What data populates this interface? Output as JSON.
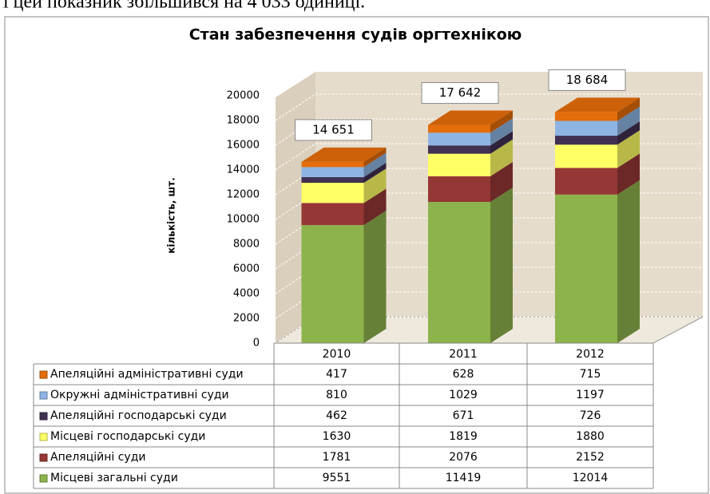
{
  "caption": "і цей показник збільшився на 4 033 одиниці.",
  "chart_data": {
    "type": "bar3d-stacked",
    "title": "Стан забезпечення судів оргтехнікою",
    "y_label": "кількість, шт.",
    "categories": [
      "2010",
      "2011",
      "2012"
    ],
    "ylim": [
      0,
      20000
    ],
    "yticks": [
      0,
      2000,
      4000,
      6000,
      8000,
      10000,
      12000,
      14000,
      16000,
      18000,
      20000
    ],
    "grid": true,
    "series": [
      {
        "name": "Місцеві загальні суди",
        "color": "#8db34c",
        "values": [
          9551,
          11419,
          12014
        ]
      },
      {
        "name": "Апеляційні суди",
        "color": "#953735",
        "values": [
          1781,
          2076,
          2152
        ]
      },
      {
        "name": "Місцеві господарські суди",
        "color": "#ffff66",
        "values": [
          1630,
          1819,
          1880
        ]
      },
      {
        "name": "Апеляційні господарські суди",
        "color": "#403152",
        "values": [
          462,
          671,
          726
        ]
      },
      {
        "name": "Окружні адміністративні суди",
        "color": "#8eb4e3",
        "values": [
          810,
          1029,
          1197
        ]
      },
      {
        "name": "Апеляційні адміністративні суди",
        "color": "#e46c0a",
        "values": [
          417,
          628,
          715
        ]
      }
    ],
    "totals": {
      "values": [
        14651,
        17642,
        18684
      ],
      "value_labels": [
        "14 651",
        "17 642",
        "18 684"
      ]
    }
  }
}
